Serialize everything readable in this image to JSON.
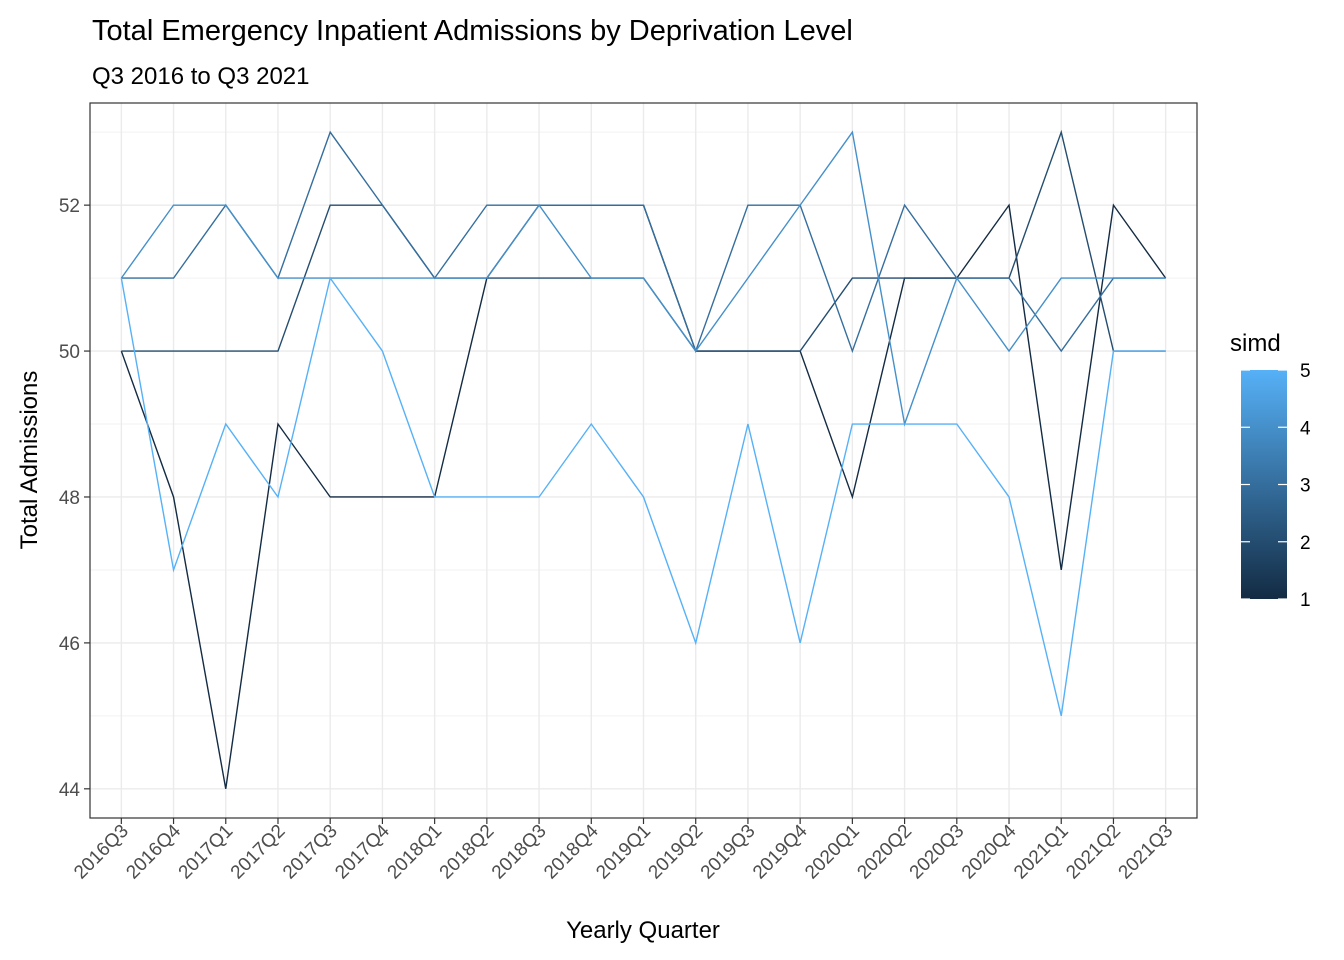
{
  "chart_data": {
    "type": "line",
    "title": "Total Emergency Inpatient Admissions by Deprivation Level",
    "subtitle": "Q3 2016 to Q3 2021",
    "xlabel": "Yearly Quarter",
    "ylabel": "Total Admissions",
    "ylim": [
      43.6,
      53.4
    ],
    "yticks": [
      44,
      46,
      48,
      50,
      52
    ],
    "grid": true,
    "categories": [
      "2016Q3",
      "2016Q4",
      "2017Q1",
      "2017Q2",
      "2017Q3",
      "2017Q4",
      "2018Q1",
      "2018Q2",
      "2018Q3",
      "2018Q4",
      "2019Q1",
      "2019Q2",
      "2019Q3",
      "2019Q4",
      "2020Q1",
      "2020Q2",
      "2020Q3",
      "2020Q4",
      "2021Q1",
      "2021Q2",
      "2021Q3"
    ],
    "legend": {
      "title": "simd",
      "placement": "right",
      "scale_min": 1,
      "scale_max": 5,
      "low_color": "#132B43",
      "high_color": "#56B1F7",
      "ticks": [
        "1",
        "2",
        "3",
        "4",
        "5"
      ]
    },
    "series": [
      {
        "simd": 1,
        "values": [
          50,
          48,
          44,
          49,
          48,
          48,
          48,
          51,
          52,
          52,
          52,
          50,
          50,
          50,
          48,
          51,
          51,
          52,
          47,
          52,
          51
        ]
      },
      {
        "simd": 2,
        "values": [
          50,
          50,
          50,
          50,
          52,
          52,
          51,
          51,
          51,
          51,
          51,
          50,
          50,
          50,
          51,
          51,
          51,
          51,
          53,
          50,
          50
        ]
      },
      {
        "simd": 3,
        "values": [
          51,
          51,
          52,
          51,
          53,
          52,
          51,
          52,
          52,
          52,
          52,
          50,
          52,
          52,
          50,
          52,
          51,
          51,
          50,
          51,
          51
        ]
      },
      {
        "simd": 4,
        "values": [
          51,
          52,
          52,
          51,
          51,
          51,
          51,
          51,
          52,
          51,
          51,
          50,
          51,
          52,
          53,
          49,
          51,
          50,
          51,
          51,
          51
        ]
      },
      {
        "simd": 5,
        "values": [
          51,
          47,
          49,
          48,
          51,
          50,
          48,
          48,
          48,
          49,
          48,
          46,
          49,
          46,
          49,
          49,
          49,
          48,
          45,
          50,
          50
        ]
      }
    ]
  }
}
